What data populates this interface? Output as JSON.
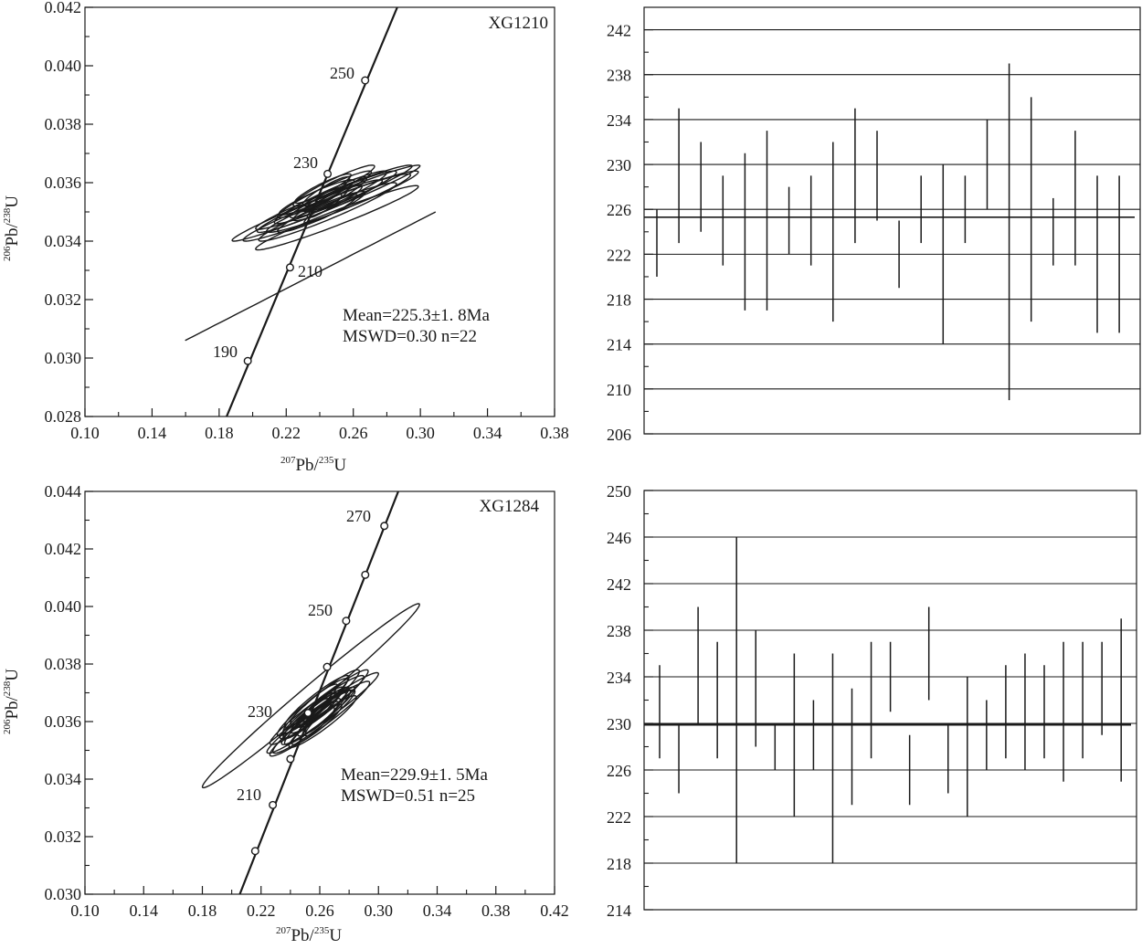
{
  "chart_data": [
    {
      "type": "scatter",
      "sample": "XG1210",
      "xlabel": {
        "sup1": "207",
        "base1": "Pb/",
        "sup2": "235",
        "base2": "U"
      },
      "ylabel": {
        "sup1": "206",
        "base1": "Pb/",
        "sup2": "238",
        "base2": "U"
      },
      "xlim": [
        0.1,
        0.4
      ],
      "ylim": [
        0.028,
        0.042
      ],
      "xticks": [
        "0.10",
        "0.14",
        "0.18",
        "0.22",
        "0.26",
        "0.30",
        "0.34",
        "0.38"
      ],
      "yticks": [
        "0.028",
        "0.030",
        "0.032",
        "0.034",
        "0.036",
        "0.038",
        "0.040",
        "0.042"
      ],
      "concordia_ages": [
        "190",
        "210",
        "230",
        "250"
      ],
      "concordia_points": [
        {
          "age": "190",
          "x": 0.204,
          "y": 0.0299
        },
        {
          "age": "210",
          "x": 0.231,
          "y": 0.0331
        },
        {
          "age": "230",
          "x": 0.255,
          "y": 0.0363
        },
        {
          "age": "250",
          "x": 0.279,
          "y": 0.0395
        }
      ],
      "mean_text": "Mean=225.3±1. 8Ma",
      "mswd_text": "MSWD=0.30 n=22",
      "n": 22
    },
    {
      "type": "bar",
      "subtype": "age-error-bars",
      "ylim": [
        206,
        244
      ],
      "yticks": [
        "206",
        "210",
        "214",
        "218",
        "222",
        "226",
        "230",
        "234",
        "238",
        "242"
      ],
      "mean": 225.3,
      "errors": [
        [
          220,
          226
        ],
        [
          223,
          235
        ],
        [
          224,
          232
        ],
        [
          221,
          229
        ],
        [
          217,
          231
        ],
        [
          217,
          233
        ],
        [
          222,
          228
        ],
        [
          221,
          229
        ],
        [
          216,
          232
        ],
        [
          223,
          235
        ],
        [
          225,
          233
        ],
        [
          219,
          225
        ],
        [
          223,
          229
        ],
        [
          214,
          230
        ],
        [
          223,
          229
        ],
        [
          226,
          234
        ],
        [
          209,
          239
        ],
        [
          216,
          236
        ],
        [
          221,
          227
        ],
        [
          221,
          233
        ],
        [
          215,
          229
        ],
        [
          215,
          229
        ]
      ]
    },
    {
      "type": "scatter",
      "sample": "XG1284",
      "xlabel": {
        "sup1": "207",
        "base1": "Pb/",
        "sup2": "235",
        "base2": "U"
      },
      "ylabel": {
        "sup1": "206",
        "base1": "Pb/",
        "sup2": "238",
        "base2": "U"
      },
      "xlim": [
        0.1,
        0.42
      ],
      "ylim": [
        0.03,
        0.044
      ],
      "xticks": [
        "0.10",
        "0.14",
        "0.18",
        "0.22",
        "0.26",
        "0.30",
        "0.34",
        "0.38",
        "0.42"
      ],
      "yticks": [
        "0.030",
        "0.032",
        "0.034",
        "0.036",
        "0.038",
        "0.040",
        "0.042",
        "0.044"
      ],
      "concordia_ages": [
        "210",
        "230",
        "250",
        "270"
      ],
      "concordia_points": [
        {
          "age": "200",
          "x": 0.216,
          "y": 0.0315
        },
        {
          "age": "210",
          "x": 0.228,
          "y": 0.0331
        },
        {
          "age": "220",
          "x": 0.24,
          "y": 0.0347
        },
        {
          "age": "230",
          "x": 0.252,
          "y": 0.0363
        },
        {
          "age": "240",
          "x": 0.265,
          "y": 0.0379
        },
        {
          "age": "250",
          "x": 0.278,
          "y": 0.0395
        },
        {
          "age": "260",
          "x": 0.291,
          "y": 0.0411
        },
        {
          "age": "270",
          "x": 0.304,
          "y": 0.0428
        }
      ],
      "mean_text": "Mean=229.9±1. 5Ma",
      "mswd_text": "MSWD=0.51 n=25",
      "n": 25
    },
    {
      "type": "bar",
      "subtype": "age-error-bars",
      "ylim": [
        214,
        250
      ],
      "yticks": [
        "214",
        "218",
        "222",
        "226",
        "230",
        "234",
        "238",
        "242",
        "246",
        "250"
      ],
      "mean": 229.9,
      "errors": [
        [
          227,
          235
        ],
        [
          224,
          230
        ],
        [
          230,
          240
        ],
        [
          227,
          237
        ],
        [
          218,
          246
        ],
        [
          228,
          238
        ],
        [
          226,
          230
        ],
        [
          222,
          236
        ],
        [
          226,
          232
        ],
        [
          218,
          236
        ],
        [
          223,
          233
        ],
        [
          227,
          237
        ],
        [
          231,
          237
        ],
        [
          223,
          229
        ],
        [
          232,
          240
        ],
        [
          224,
          230
        ],
        [
          222,
          234
        ],
        [
          226,
          232
        ],
        [
          227,
          235
        ],
        [
          226,
          236
        ],
        [
          227,
          235
        ],
        [
          225,
          237
        ],
        [
          227,
          237
        ],
        [
          229,
          237
        ],
        [
          225,
          239
        ]
      ]
    }
  ]
}
